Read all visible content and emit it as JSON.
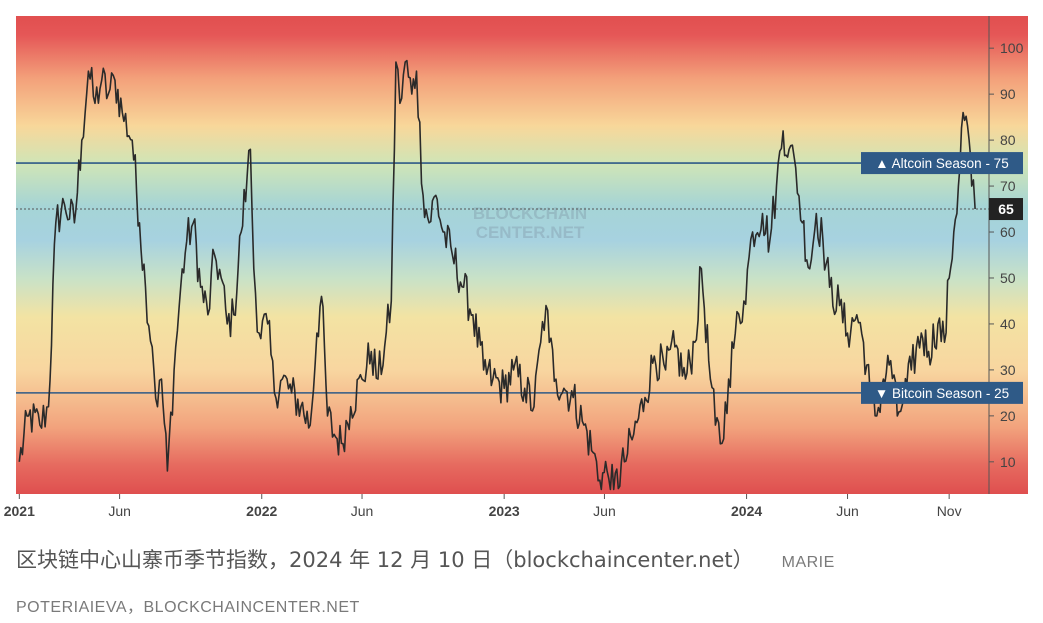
{
  "chart_data": {
    "type": "line",
    "series": [
      {
        "values": [
          [
            "2021-01-01",
            10
          ],
          [
            "2021-01-15",
            20
          ],
          [
            "2021-02-01",
            18
          ],
          [
            "2021-02-14",
            22
          ],
          [
            "2021-02-25",
            62
          ],
          [
            "2021-03-10",
            66
          ],
          [
            "2021-03-25",
            62
          ],
          [
            "2021-04-05",
            80
          ],
          [
            "2021-04-15",
            95
          ],
          [
            "2021-04-25",
            88
          ],
          [
            "2021-05-05",
            93
          ],
          [
            "2021-05-15",
            90
          ],
          [
            "2021-05-25",
            93
          ],
          [
            "2021-06-05",
            86
          ],
          [
            "2021-06-20",
            80
          ],
          [
            "2021-07-01",
            62
          ],
          [
            "2021-07-10",
            48
          ],
          [
            "2021-07-20",
            35
          ],
          [
            "2021-07-28",
            22
          ],
          [
            "2021-08-03",
            28
          ],
          [
            "2021-08-12",
            8
          ],
          [
            "2021-08-22",
            30
          ],
          [
            "2021-09-01",
            48
          ],
          [
            "2021-09-10",
            58
          ],
          [
            "2021-09-20",
            62
          ],
          [
            "2021-10-01",
            48
          ],
          [
            "2021-10-12",
            42
          ],
          [
            "2021-10-22",
            55
          ],
          [
            "2021-11-01",
            50
          ],
          [
            "2021-11-10",
            40
          ],
          [
            "2021-11-20",
            42
          ],
          [
            "2021-12-01",
            60
          ],
          [
            "2021-12-10",
            72
          ],
          [
            "2021-12-15",
            78
          ],
          [
            "2021-12-20",
            52
          ],
          [
            "2021-12-28",
            38
          ],
          [
            "2022-01-10",
            40
          ],
          [
            "2022-01-20",
            25
          ],
          [
            "2022-02-01",
            28
          ],
          [
            "2022-02-15",
            25
          ],
          [
            "2022-03-01",
            22
          ],
          [
            "2022-03-15",
            18
          ],
          [
            "2022-03-25",
            38
          ],
          [
            "2022-04-01",
            46
          ],
          [
            "2022-04-10",
            20
          ],
          [
            "2022-04-20",
            16
          ],
          [
            "2022-05-01",
            14
          ],
          [
            "2022-05-15",
            22
          ],
          [
            "2022-06-01",
            28
          ],
          [
            "2022-06-15",
            34
          ],
          [
            "2022-06-25",
            28
          ],
          [
            "2022-07-05",
            35
          ],
          [
            "2022-07-15",
            45
          ],
          [
            "2022-07-22",
            97
          ],
          [
            "2022-07-28",
            88
          ],
          [
            "2022-08-05",
            97
          ],
          [
            "2022-08-15",
            90
          ],
          [
            "2022-08-22",
            95
          ],
          [
            "2022-09-01",
            68
          ],
          [
            "2022-09-10",
            62
          ],
          [
            "2022-09-20",
            68
          ],
          [
            "2022-10-01",
            60
          ],
          [
            "2022-10-15",
            55
          ],
          [
            "2022-11-01",
            48
          ],
          [
            "2022-11-15",
            42
          ],
          [
            "2022-12-01",
            30
          ],
          [
            "2022-12-15",
            28
          ],
          [
            "2023-01-01",
            26
          ],
          [
            "2023-01-15",
            30
          ],
          [
            "2023-02-01",
            26
          ],
          [
            "2023-02-15",
            22
          ],
          [
            "2023-02-25",
            36
          ],
          [
            "2023-03-05",
            44
          ],
          [
            "2023-03-10",
            36
          ],
          [
            "2023-03-20",
            28
          ],
          [
            "2023-04-01",
            26
          ],
          [
            "2023-04-15",
            24
          ],
          [
            "2023-05-01",
            18
          ],
          [
            "2023-05-15",
            12
          ],
          [
            "2023-05-25",
            6
          ],
          [
            "2023-06-05",
            8
          ],
          [
            "2023-06-15",
            4
          ],
          [
            "2023-07-01",
            10
          ],
          [
            "2023-07-15",
            16
          ],
          [
            "2023-08-01",
            24
          ],
          [
            "2023-08-15",
            33
          ],
          [
            "2023-09-01",
            30
          ],
          [
            "2023-09-15",
            35
          ],
          [
            "2023-10-01",
            28
          ],
          [
            "2023-10-15",
            36
          ],
          [
            "2023-10-25",
            52
          ],
          [
            "2023-11-05",
            32
          ],
          [
            "2023-11-15",
            18
          ],
          [
            "2023-11-25",
            14
          ],
          [
            "2023-12-05",
            28
          ],
          [
            "2023-12-15",
            38
          ],
          [
            "2023-12-28",
            45
          ],
          [
            "2024-01-10",
            60
          ],
          [
            "2024-01-25",
            64
          ],
          [
            "2024-02-05",
            58
          ],
          [
            "2024-02-15",
            70
          ],
          [
            "2024-02-25",
            82
          ],
          [
            "2024-03-05",
            78
          ],
          [
            "2024-03-15",
            74
          ],
          [
            "2024-03-25",
            62
          ],
          [
            "2024-04-05",
            52
          ],
          [
            "2024-04-15",
            64
          ],
          [
            "2024-04-25",
            58
          ],
          [
            "2024-05-05",
            48
          ],
          [
            "2024-05-20",
            44
          ],
          [
            "2024-06-01",
            38
          ],
          [
            "2024-06-15",
            42
          ],
          [
            "2024-06-25",
            36
          ],
          [
            "2024-07-05",
            25
          ],
          [
            "2024-07-15",
            20
          ],
          [
            "2024-07-25",
            28
          ],
          [
            "2024-08-05",
            32
          ],
          [
            "2024-08-15",
            20
          ],
          [
            "2024-08-25",
            24
          ],
          [
            "2024-09-05",
            30
          ],
          [
            "2024-09-20",
            38
          ],
          [
            "2024-10-01",
            34
          ],
          [
            "2024-10-15",
            40
          ],
          [
            "2024-10-25",
            36
          ],
          [
            "2024-11-01",
            50
          ],
          [
            "2024-11-08",
            60
          ],
          [
            "2024-11-15",
            70
          ],
          [
            "2024-11-22",
            86
          ],
          [
            "2024-12-01",
            80
          ],
          [
            "2024-12-05",
            70
          ],
          [
            "2024-12-10",
            65
          ]
        ]
      }
    ],
    "x_range": [
      "2020-12-27",
      "2024-12-31"
    ],
    "ylim": [
      3,
      107
    ],
    "y_ticks": [
      "10",
      "20",
      "30",
      "40",
      "50",
      "60",
      "70",
      "80",
      "90",
      "100"
    ],
    "x_ticks": [
      {
        "label": "2021",
        "date": "2021-01-01"
      },
      {
        "label": "Jun",
        "date": "2021-06-01"
      },
      {
        "label": "2022",
        "date": "2022-01-01"
      },
      {
        "label": "Jun",
        "date": "2022-06-01"
      },
      {
        "label": "2023",
        "date": "2023-01-01"
      },
      {
        "label": "Jun",
        "date": "2023-06-01"
      },
      {
        "label": "2024",
        "date": "2024-01-01"
      },
      {
        "label": "Jun",
        "date": "2024-06-01"
      },
      {
        "label": "Nov",
        "date": "2024-11-01"
      }
    ],
    "hlines": [
      {
        "value": 75,
        "label": "▲ Altcoin Season - 75",
        "color": "#2f5a87"
      },
      {
        "value": 25,
        "label": "▼ Bitcoin Season - 25",
        "color": "#2f5a87"
      }
    ],
    "current_value": {
      "value": 65,
      "label": "65"
    },
    "watermark": [
      "BLOCKCHAIN",
      "CENTER.NET"
    ],
    "background_gradient": "red (0/100) → orange → yellow → green → blue (50)",
    "grid": false
  },
  "caption": {
    "text": "区块链中心山寨币季节指数，2024 年 12 月 10 日（blockchaincenter.net）",
    "credit_part1": "MARIE",
    "credit_part2": "POTERIAIEVA，BLOCKCHAINCENTER.NET"
  },
  "colors": {
    "line": "#2a2a2a",
    "season_lines": "#2f5a87",
    "label_bg": "#2f5a87",
    "current_label_bg": "#222222",
    "axis_text": "#444444"
  }
}
